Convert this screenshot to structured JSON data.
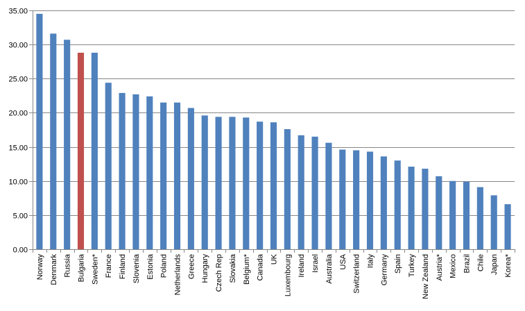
{
  "chart_data": {
    "type": "bar",
    "title": "",
    "xlabel": "",
    "ylabel": "",
    "ylim": [
      0,
      35
    ],
    "yticks": [
      "0.00",
      "5.00",
      "10.00",
      "15.00",
      "20.00",
      "25.00",
      "30.00",
      "35.00"
    ],
    "grid": true,
    "legend": "none",
    "categories": [
      "Norway",
      "Denmark",
      "Russia",
      "Bulgaria",
      "Sweden*",
      "France",
      "Finland",
      "Slovenia",
      "Estonia",
      "Poland",
      "Netherlands",
      "Greece",
      "Hungary",
      "Czech Rep",
      "Slovakia",
      "Belgium*",
      "Canada",
      "UK",
      "Luxembourg",
      "Ireland",
      "Israel",
      "Australia",
      "USA",
      "Switzerland",
      "Italy",
      "Germany",
      "Spain",
      "Turkey",
      "New Zealand",
      "Austria*",
      "Mexico",
      "Brazil",
      "Chile",
      "Japan",
      "Korea*"
    ],
    "values": [
      34.5,
      31.6,
      30.7,
      28.8,
      28.8,
      24.4,
      22.9,
      22.7,
      22.4,
      21.5,
      21.5,
      20.7,
      19.6,
      19.4,
      19.4,
      19.3,
      18.7,
      18.6,
      17.6,
      16.7,
      16.5,
      15.6,
      14.6,
      14.5,
      14.3,
      13.6,
      13.0,
      12.1,
      11.8,
      10.7,
      10.0,
      9.9,
      9.1,
      7.9,
      6.6
    ],
    "colors": {
      "default": "#4f81bd",
      "highlight": "#c0504d",
      "gridline": "#868686",
      "axis": "#868686"
    },
    "highlight_category": "Bulgaria"
  }
}
